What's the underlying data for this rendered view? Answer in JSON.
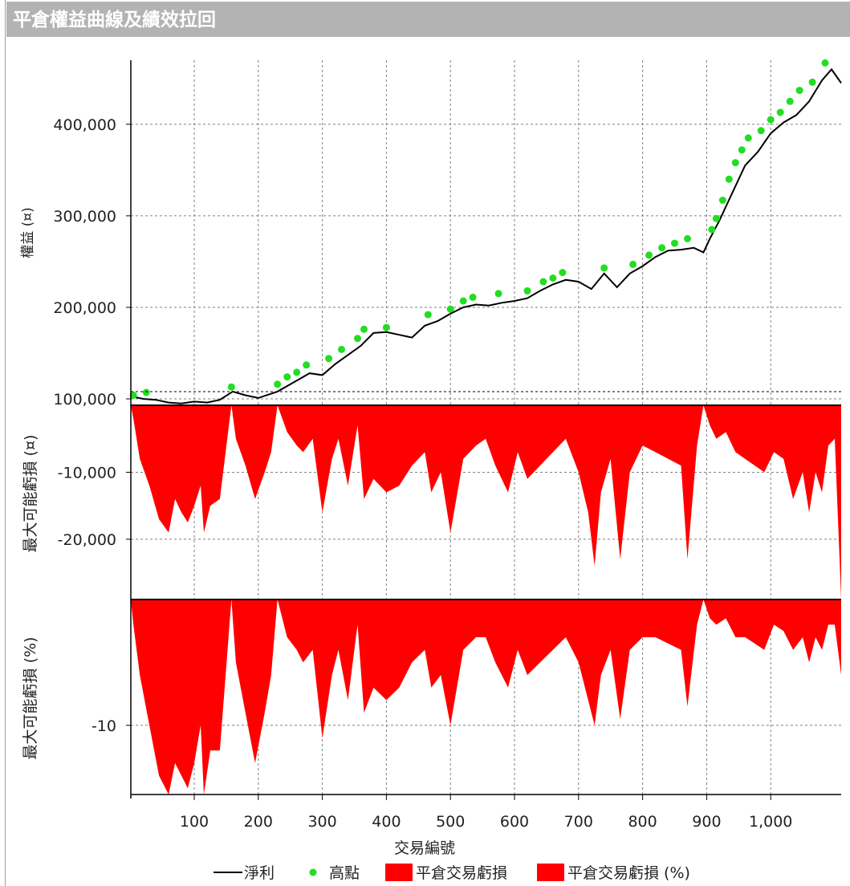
{
  "window": {
    "title": "平倉權益曲線及績效拉回"
  },
  "colors": {
    "equity_line": "#000000",
    "high_points": "#22dd22",
    "drawdown_fill": "#ff0000",
    "grid": "#808080",
    "title_bar": "#b3b3b3"
  },
  "legend": {
    "net_profit": "淨利",
    "highs": "高點",
    "dd_amount": "平倉交易虧損",
    "dd_percent": "平倉交易虧損 (%)"
  },
  "chart_data": [
    {
      "type": "line",
      "ylabel": "權益 (¤)",
      "xlabel": "交易編號",
      "xlim": [
        1,
        1110
      ],
      "ylim": [
        93000,
        470000
      ],
      "yticks": [
        100000,
        200000,
        300000,
        400000
      ],
      "ytick_labels": [
        "100,000",
        "200,000",
        "300,000",
        "400,000"
      ],
      "xticks": [
        100,
        200,
        300,
        400,
        500,
        600,
        700,
        800,
        900,
        1000
      ],
      "xtick_labels": [
        "100",
        "200",
        "300",
        "400",
        "500",
        "600",
        "700",
        "800",
        "900",
        "1,000"
      ],
      "series": [
        {
          "name": "淨利",
          "x": [
            1,
            20,
            40,
            60,
            80,
            100,
            120,
            140,
            160,
            180,
            200,
            230,
            260,
            280,
            300,
            320,
            340,
            360,
            380,
            400,
            420,
            440,
            460,
            480,
            500,
            520,
            540,
            560,
            580,
            600,
            620,
            640,
            660,
            680,
            700,
            720,
            740,
            760,
            780,
            800,
            820,
            840,
            860,
            880,
            895,
            905,
            920,
            940,
            960,
            980,
            1000,
            1020,
            1040,
            1060,
            1080,
            1095,
            1110
          ],
          "y": [
            103000,
            100000,
            99000,
            96000,
            95000,
            97000,
            96000,
            99000,
            108000,
            104000,
            101000,
            108000,
            120000,
            128000,
            126000,
            138000,
            148000,
            158000,
            172000,
            173000,
            170000,
            167000,
            180000,
            185000,
            193000,
            200000,
            203000,
            202000,
            205000,
            207000,
            210000,
            218000,
            225000,
            230000,
            228000,
            220000,
            237000,
            222000,
            237000,
            245000,
            255000,
            262000,
            263000,
            265000,
            260000,
            275000,
            295000,
            325000,
            355000,
            370000,
            390000,
            402000,
            410000,
            425000,
            448000,
            460000,
            445000
          ]
        },
        {
          "name": "高點",
          "x": [
            5,
            25,
            158,
            230,
            245,
            260,
            275,
            310,
            330,
            355,
            365,
            400,
            465,
            500,
            520,
            535,
            575,
            620,
            645,
            660,
            675,
            740,
            785,
            810,
            830,
            850,
            870,
            908,
            915,
            925,
            935,
            945,
            955,
            965,
            985,
            1000,
            1015,
            1030,
            1045,
            1065,
            1085
          ],
          "y": [
            104000,
            107000,
            113000,
            116000,
            124000,
            129000,
            137000,
            144000,
            154000,
            166000,
            176000,
            178000,
            192000,
            198000,
            207000,
            211000,
            215000,
            218000,
            228000,
            232000,
            238000,
            243000,
            247000,
            257000,
            265000,
            270000,
            275000,
            285000,
            297000,
            317000,
            340000,
            358000,
            372000,
            385000,
            393000,
            405000,
            413000,
            425000,
            437000,
            446000,
            467000
          ]
        }
      ]
    },
    {
      "type": "area",
      "ylabel": "最大可能虧損 (¤)",
      "ylim": [
        -29000,
        0
      ],
      "yticks": [
        -10000,
        -20000
      ],
      "ytick_labels": [
        "-10,000",
        "-20,000"
      ],
      "series": [
        {
          "name": "平倉交易虧損",
          "x": [
            1,
            5,
            15,
            30,
            45,
            60,
            70,
            80,
            90,
            100,
            110,
            115,
            125,
            140,
            158,
            165,
            180,
            195,
            210,
            220,
            230,
            245,
            260,
            270,
            285,
            300,
            315,
            325,
            340,
            355,
            365,
            380,
            400,
            420,
            440,
            460,
            470,
            485,
            500,
            520,
            540,
            555,
            570,
            590,
            605,
            620,
            640,
            660,
            680,
            700,
            715,
            725,
            735,
            750,
            765,
            780,
            800,
            820,
            840,
            860,
            870,
            885,
            895,
            905,
            915,
            930,
            945,
            960,
            975,
            990,
            1005,
            1020,
            1035,
            1050,
            1060,
            1070,
            1080,
            1090,
            1100,
            1110
          ],
          "y": [
            0,
            -2000,
            -8000,
            -12000,
            -17000,
            -19000,
            -14000,
            -16000,
            -17500,
            -15000,
            -12000,
            -19000,
            -15000,
            -14000,
            0,
            -5000,
            -9000,
            -14000,
            -10000,
            -7000,
            0,
            -4000,
            -6000,
            -7000,
            -5000,
            -16000,
            -8000,
            -5000,
            -12000,
            -3000,
            -14000,
            -11000,
            -13000,
            -12000,
            -9000,
            -7000,
            -13000,
            -10000,
            -19000,
            -8000,
            -6000,
            -5000,
            -9000,
            -13000,
            -7000,
            -11000,
            -9000,
            -7000,
            -5000,
            -10000,
            -16000,
            -24000,
            -13000,
            -8000,
            -23000,
            -10000,
            -6000,
            -7000,
            -8000,
            -9000,
            -23000,
            -6000,
            0,
            -3000,
            -5000,
            -4000,
            -7000,
            -8000,
            -9000,
            -10000,
            -7000,
            -8000,
            -14000,
            -10000,
            -16000,
            -10000,
            -13000,
            -6000,
            -5000,
            -29000
          ]
        }
      ]
    },
    {
      "type": "area",
      "ylabel": "最大可能虧損 (%)",
      "ylim": [
        -15.5,
        0
      ],
      "yticks": [
        -10
      ],
      "ytick_labels": [
        "-10"
      ],
      "series": [
        {
          "name": "平倉交易虧損 (%)",
          "x": [
            1,
            5,
            15,
            30,
            45,
            60,
            70,
            80,
            90,
            100,
            110,
            115,
            125,
            140,
            158,
            165,
            180,
            195,
            210,
            220,
            230,
            245,
            260,
            270,
            285,
            300,
            315,
            325,
            340,
            355,
            365,
            380,
            400,
            420,
            440,
            460,
            470,
            485,
            500,
            520,
            540,
            555,
            570,
            590,
            605,
            620,
            640,
            660,
            680,
            700,
            715,
            725,
            735,
            750,
            765,
            780,
            800,
            820,
            840,
            860,
            870,
            885,
            895,
            905,
            915,
            930,
            945,
            960,
            975,
            990,
            1005,
            1020,
            1035,
            1050,
            1060,
            1070,
            1080,
            1090,
            1100,
            1110
          ],
          "y": [
            0,
            -2,
            -6,
            -10,
            -14,
            -15.5,
            -13,
            -14,
            -15,
            -13,
            -10,
            -15.5,
            -12,
            -12,
            0,
            -5,
            -9,
            -13,
            -9,
            -6,
            0,
            -3,
            -4,
            -5,
            -4,
            -11,
            -6,
            -4,
            -8,
            -2,
            -9,
            -7,
            -8,
            -7,
            -5,
            -4,
            -7,
            -6,
            -10,
            -4,
            -3,
            -3,
            -5,
            -7,
            -4,
            -6,
            -5,
            -4,
            -3,
            -5,
            -8,
            -10,
            -6,
            -4,
            -9.5,
            -4,
            -3,
            -3,
            -3.5,
            -4,
            -8.5,
            -2,
            0,
            -1.5,
            -2,
            -1.5,
            -3,
            -3,
            -3.5,
            -4,
            -2,
            -2.5,
            -4,
            -3,
            -5,
            -3,
            -4,
            -2,
            -2,
            -6
          ]
        }
      ]
    }
  ]
}
